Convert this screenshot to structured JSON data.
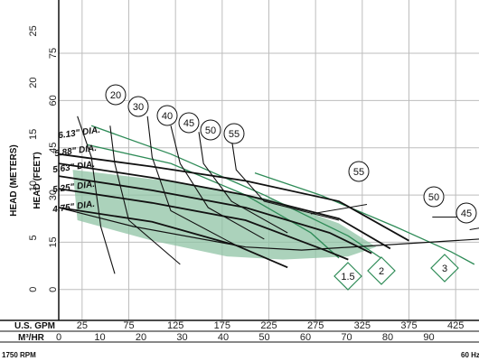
{
  "chart_data": {
    "type": "line",
    "title": "",
    "x_units": [
      {
        "label": "U.S. GPM",
        "ticks": [
          "25",
          "75",
          "125",
          "175",
          "225",
          "275",
          "325",
          "375",
          "425"
        ],
        "xlim": [
          0,
          450
        ]
      },
      {
        "label": "M³/HR",
        "ticks": [
          "0",
          "10",
          "20",
          "30",
          "40",
          "50",
          "60",
          "70",
          "80",
          "90"
        ],
        "xlim": [
          0,
          102.2
        ]
      }
    ],
    "y_units": [
      {
        "label": "HEAD (METERS)",
        "ticks": [
          "0",
          "5",
          "10",
          "15",
          "20",
          "25"
        ],
        "ylim": [
          -3,
          28
        ]
      },
      {
        "label": "HEAD (FEET)",
        "ticks": [
          "0",
          "15",
          "30",
          "45",
          "60",
          "75"
        ],
        "ylim": [
          -9.8,
          91.9
        ]
      }
    ],
    "series": [
      {
        "name": "6.13\" DIA.",
        "x": [
          0,
          100,
          200,
          300,
          375
        ],
        "y": [
          43,
          39,
          34.5,
          28,
          15.5
        ]
      },
      {
        "name": "5.88\" DIA.",
        "x": [
          0,
          100,
          200,
          300,
          355
        ],
        "y": [
          40,
          35.5,
          30,
          22.5,
          13
        ]
      },
      {
        "name": "5.63\" DIA.",
        "x": [
          0,
          100,
          200,
          290,
          335
        ],
        "y": [
          36,
          31.5,
          26,
          18,
          11.5
        ]
      },
      {
        "name": "5.25\" DIA.",
        "x": [
          0,
          100,
          200,
          285,
          310
        ],
        "y": [
          32,
          27.5,
          22,
          12.5,
          9.5
        ]
      },
      {
        "name": "4.75\" DIA.",
        "x": [
          0,
          100,
          190,
          245
        ],
        "y": [
          26,
          21.5,
          14,
          7
        ]
      }
    ],
    "efficiency_labels": [
      "20",
      "30",
      "40",
      "45",
      "50",
      "55"
    ],
    "efficiency_labels_right": [
      "55",
      "50",
      "45"
    ],
    "npsh_labels": [
      "1.5",
      "2",
      "3"
    ],
    "rpm_label": "1750 RPM",
    "hz_label": "60 Hz",
    "colors": {
      "curve": "#111111",
      "npsh": "#2e8b57",
      "fill": "#8fc3a4",
      "grid": "#bdbdbd"
    }
  }
}
